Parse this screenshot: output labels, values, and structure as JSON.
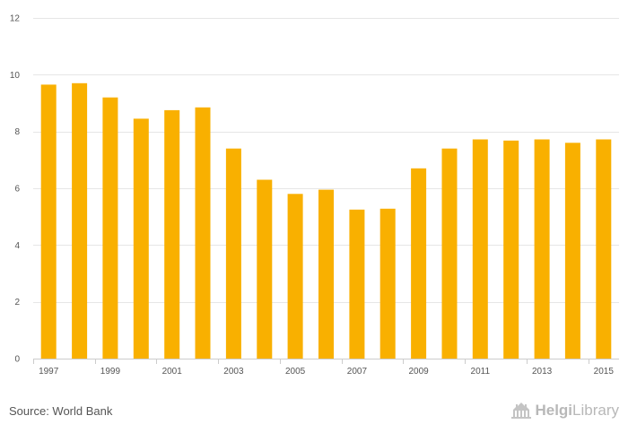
{
  "chart_data": {
    "type": "bar",
    "categories": [
      "1997",
      "1998",
      "1999",
      "2000",
      "2001",
      "2002",
      "2003",
      "2004",
      "2005",
      "2006",
      "2007",
      "2008",
      "2009",
      "2010",
      "2011",
      "2012",
      "2013",
      "2014",
      "2015"
    ],
    "values": [
      9.65,
      9.7,
      9.2,
      8.45,
      8.75,
      8.85,
      7.4,
      6.3,
      5.8,
      5.95,
      5.25,
      5.28,
      6.7,
      7.4,
      7.72,
      7.68,
      7.72,
      7.6,
      7.72
    ],
    "x_tick_labels": [
      "1997",
      "1999",
      "2001",
      "2003",
      "2005",
      "2007",
      "2009",
      "2011",
      "2013",
      "2015"
    ],
    "y_ticks": [
      0,
      2,
      4,
      6,
      8,
      10,
      12
    ],
    "ylim": [
      0,
      12
    ],
    "grid": true,
    "color": "#f9b000",
    "title": "",
    "xlabel": "",
    "ylabel": ""
  },
  "footer": {
    "source": "Source: World Bank",
    "brand_part1": "Helgi",
    "brand_part2": "Library"
  }
}
